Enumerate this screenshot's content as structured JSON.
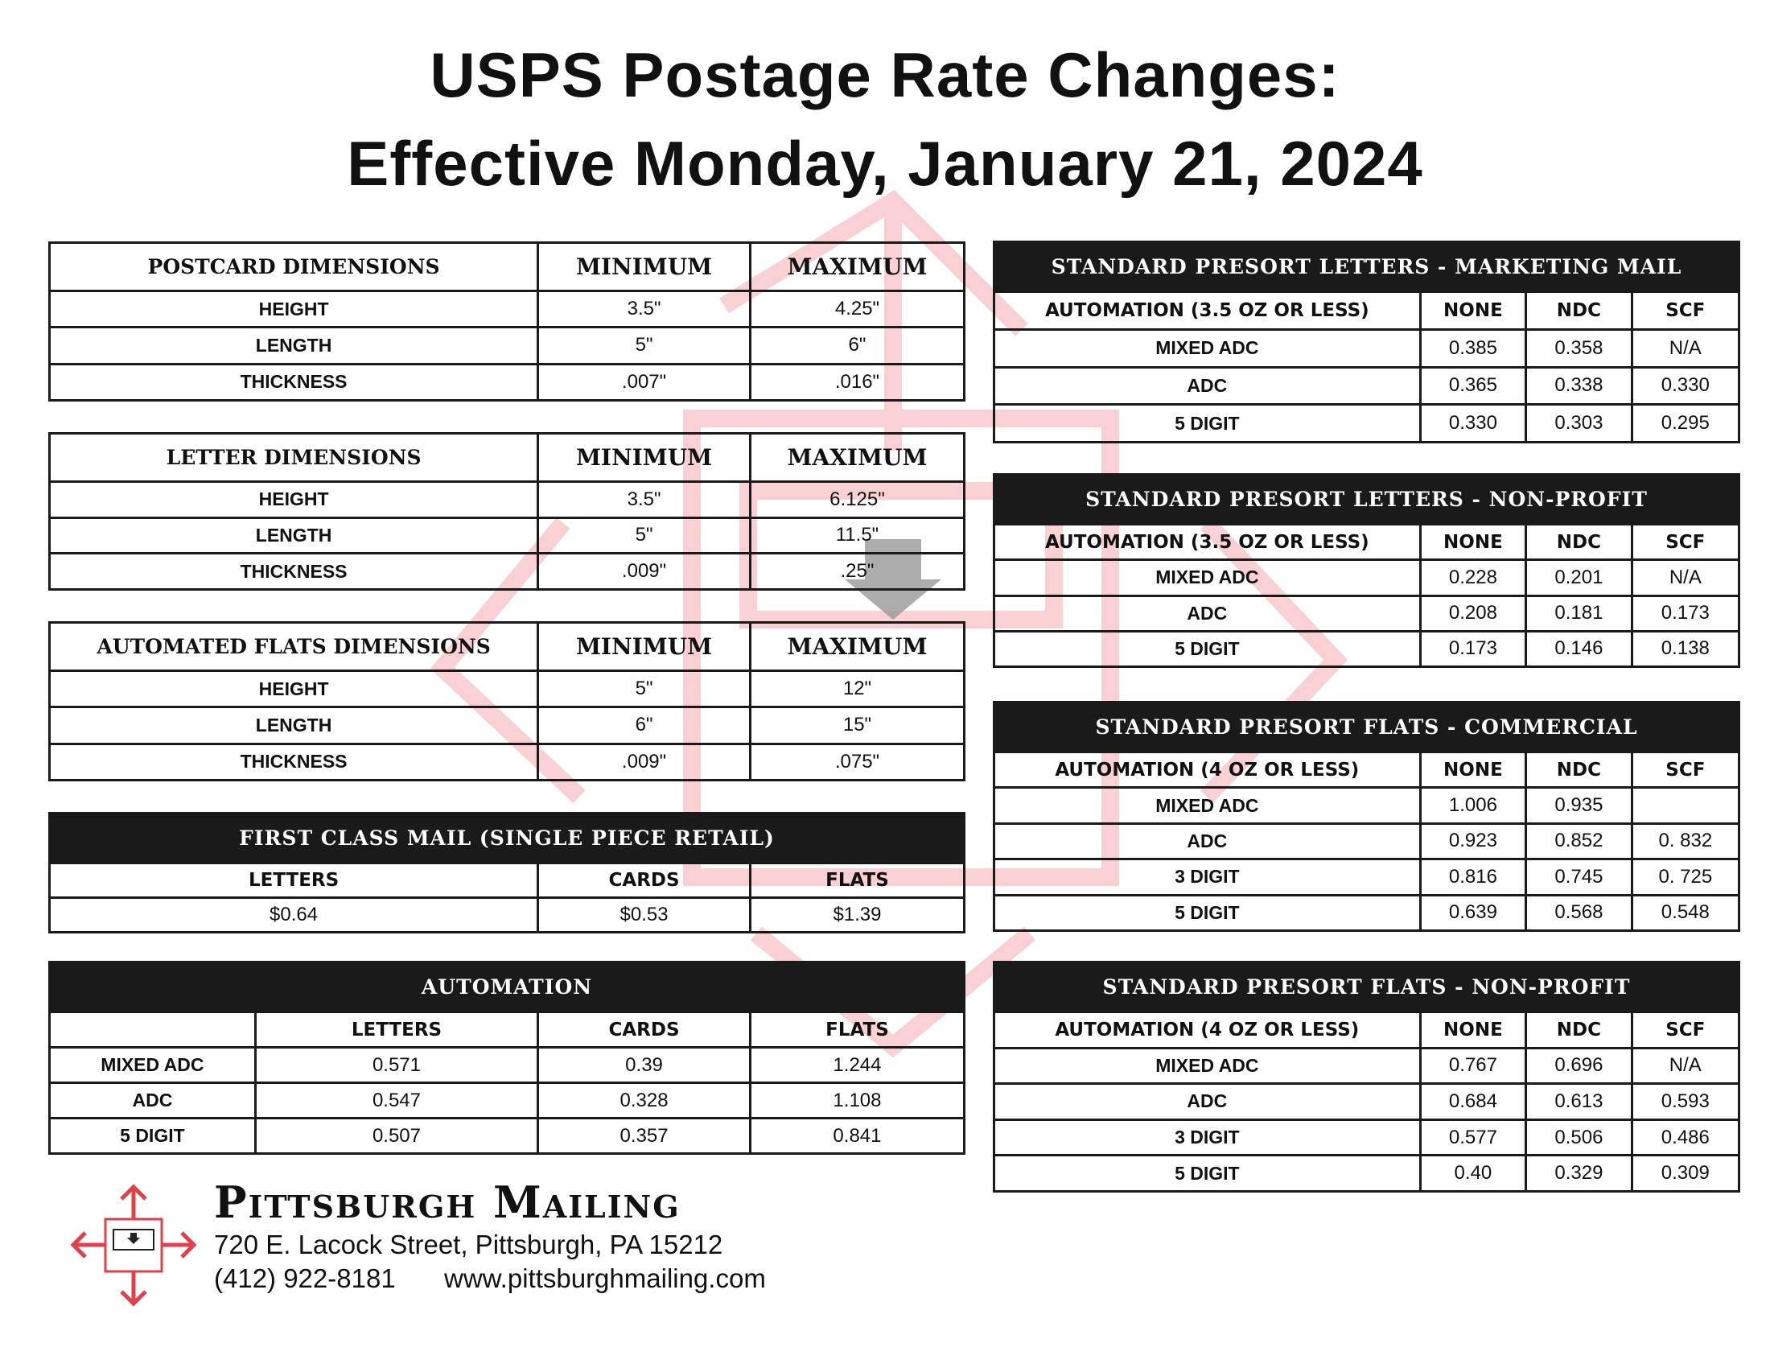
{
  "header": {
    "title_lines": [
      "USPS Postage Rate Changes:",
      "Effective Monday, January 21, 2024"
    ]
  },
  "left_tables": [
    {
      "header": [
        "POSTCARD DIMENSIONS",
        "MINIMUM",
        "MAXIMUM"
      ],
      "rows": [
        [
          "HEIGHT",
          "3.5\"",
          "4.25\""
        ],
        [
          "LENGTH",
          "5\"",
          "6\""
        ],
        [
          "THICKNESS",
          ".007\"",
          ".016\""
        ]
      ]
    },
    {
      "header": [
        "LETTER DIMENSIONS",
        "MINIMUM",
        "MAXIMUM"
      ],
      "rows": [
        [
          "HEIGHT",
          "3.5\"",
          "6.125\""
        ],
        [
          "LENGTH",
          "5\"",
          "11.5\""
        ],
        [
          "THICKNESS",
          ".009\"",
          ".25\""
        ]
      ]
    },
    {
      "header": [
        "AUTOMATED FLATS DIMENSIONS",
        "MINIMUM",
        "MAXIMUM"
      ],
      "rows": [
        [
          "HEIGHT",
          "5\"",
          "12\""
        ],
        [
          "LENGTH",
          "6\"",
          "15\""
        ],
        [
          "THICKNESS",
          ".009\"",
          ".075\""
        ]
      ]
    },
    {
      "title": "FIRST CLASS MAIL (SINGLE PIECE RETAIL)",
      "header": [
        "LETTERS",
        "CARDS",
        "FLATS"
      ],
      "rows": [
        [
          "$0.64",
          "$0.53",
          "$1.39"
        ]
      ]
    },
    {
      "title": "AUTOMATION",
      "header": [
        null,
        "LETTERS",
        "CARDS",
        "FLATS"
      ],
      "rows": [
        [
          "MIXED ADC",
          "0.571",
          "0.39",
          "1.244"
        ],
        [
          "ADC",
          "0.547",
          "0.328",
          "1.108"
        ],
        [
          "5 DIGIT",
          "0.507",
          "0.357",
          "0.841"
        ]
      ]
    }
  ],
  "right_tables": [
    {
      "title": "STANDARD PRESORT LETTERS - MARKETING MAIL",
      "header": [
        "AUTOMATION (3.5 OZ OR LESS)",
        "NONE",
        "NDC",
        "SCF"
      ],
      "rows": [
        [
          "MIXED  ADC",
          "0.385",
          "0.358",
          "N/A"
        ],
        [
          "ADC",
          "0.365",
          "0.338",
          "0.330"
        ],
        [
          "5 DIGIT",
          "0.330",
          "0.303",
          "0.295"
        ]
      ]
    },
    {
      "title": "STANDARD PRESORT LETTERS - NON-PROFIT",
      "header": [
        "AUTOMATION (3.5 OZ OR LESS)",
        "NONE",
        "NDC",
        "SCF"
      ],
      "rows": [
        [
          "MIXED ADC",
          "0.228",
          "0.201",
          "N/A"
        ],
        [
          "ADC",
          "0.208",
          "0.181",
          "0.173"
        ],
        [
          "5 DIGIT",
          "0.173",
          "0.146",
          "0.138"
        ]
      ]
    },
    {
      "title": "STANDARD PRESORT FLATS - COMMERCIAL",
      "header": [
        "AUTOMATION (4 OZ OR LESS)",
        "NONE",
        "NDC",
        "SCF"
      ],
      "rows": [
        [
          "MIXED ADC",
          "1.006",
          "0.935",
          null
        ],
        [
          "ADC",
          "0.923",
          "0.852",
          "0. 832"
        ],
        [
          "3 DIGIT",
          "0.816",
          "0.745",
          "0. 725"
        ],
        [
          "5 DIGIT",
          "0.639",
          "0.568",
          "0.548"
        ]
      ]
    },
    {
      "title": "STANDARD PRESORT FLATS - NON-PROFIT",
      "header": [
        "AUTOMATION (4 OZ OR LESS)",
        "NONE",
        "NDC",
        "SCF"
      ],
      "rows": [
        [
          "MIXED ADC",
          "0.767",
          "0.696",
          "N/A"
        ],
        [
          "ADC",
          "0.684",
          "0.613",
          "0.593"
        ],
        [
          "3 DIGIT",
          "0.577",
          "0.506",
          "0.486"
        ],
        [
          "5 DIGIT",
          "0.40",
          "0.329",
          "0.309"
        ]
      ]
    }
  ],
  "footer": {
    "company": "Pittsburgh Mailing",
    "address": "720 E. Lacock Street, Pittsburgh, PA 15212",
    "phone": "(412) 922-8181",
    "website": "www.pittsburghmailing.com"
  }
}
